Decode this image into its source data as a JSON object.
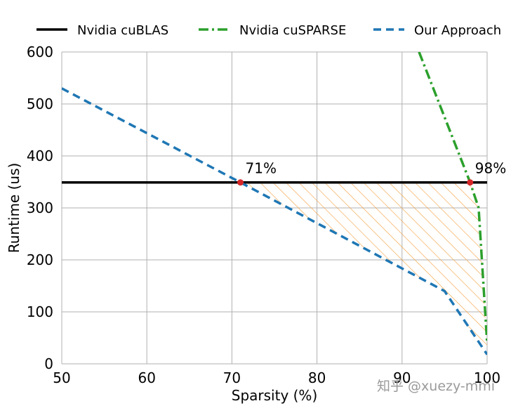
{
  "chart_data": {
    "type": "line",
    "xlabel": "Sparsity (%)",
    "ylabel": "Runtime (us)",
    "xlim": [
      50,
      100
    ],
    "ylim": [
      0,
      600
    ],
    "xticks": [
      50,
      60,
      70,
      80,
      90,
      100
    ],
    "yticks": [
      0,
      100,
      200,
      300,
      400,
      500,
      600
    ],
    "grid": true,
    "legend_position": "top",
    "series": [
      {
        "name": "Nvidia cuBLAS",
        "style": "solid",
        "color": "#000000",
        "points": [
          [
            50,
            349
          ],
          [
            100,
            349
          ]
        ]
      },
      {
        "name": "Nvidia cuSPARSE",
        "style": "dashdot",
        "color": "#2ca02c",
        "points": [
          [
            92,
            600
          ],
          [
            98,
            349
          ],
          [
            99,
            300
          ],
          [
            100,
            40
          ]
        ]
      },
      {
        "name": "Our Approach",
        "style": "dashed",
        "color": "#1f77b4",
        "points": [
          [
            50,
            530
          ],
          [
            71,
            349
          ],
          [
            95,
            140
          ],
          [
            100,
            18
          ]
        ]
      }
    ],
    "annotations": [
      {
        "label": "71%",
        "x": 71,
        "y": 349,
        "color": "#d62728"
      },
      {
        "label": "98%",
        "x": 98,
        "y": 349,
        "color": "#d62728"
      }
    ],
    "hatched_region": {
      "color": "#f5a54a",
      "description_points_note": "",
      "upper": [
        [
          71,
          349
        ],
        [
          98,
          349
        ],
        [
          99,
          300
        ],
        [
          100,
          40
        ]
      ],
      "lower": [
        [
          71,
          349
        ],
        [
          95,
          140
        ],
        [
          100,
          18
        ]
      ]
    }
  },
  "watermark": "知乎 @xuezy-mmi"
}
